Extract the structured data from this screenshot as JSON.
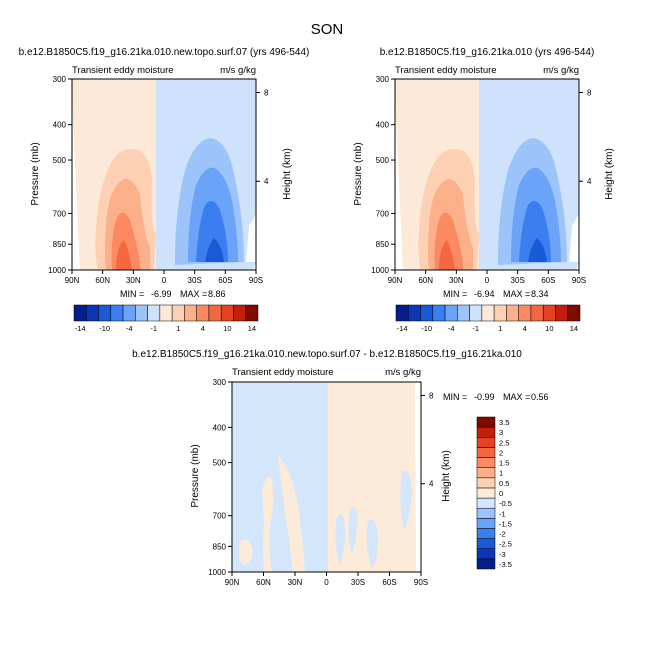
{
  "figure": {
    "title": "SON"
  },
  "palettes": {
    "main": [
      "#061d8c",
      "#0b36b8",
      "#1b5ad6",
      "#3a7ef0",
      "#6aa3f7",
      "#9cc3fa",
      "#cfe2fc",
      "#fce9d7",
      "#fdd0b3",
      "#fcb08a",
      "#fb8a62",
      "#f46740",
      "#e34322",
      "#c0200d",
      "#7f0b00"
    ],
    "diff": [
      "#061d8c",
      "#0b36b8",
      "#1b5ad6",
      "#3a7ef0",
      "#6aa3f7",
      "#9cc3fa",
      "#d3e6fc",
      "#fcebd8",
      "#fdd0b3",
      "#fcb08a",
      "#fb8a62",
      "#f46740",
      "#e34322",
      "#c0200d",
      "#7f0b00"
    ]
  },
  "chart_data": [
    {
      "type": "heatmap",
      "panel": "left",
      "title": "b.e12.B1850C5.f19_g16.21ka.010.new.topo.surf.07 (yrs 496-544)",
      "left_label": "Transient eddy moisture",
      "right_label": "m/s g/kg",
      "ylabel": "Pressure (mb)",
      "ylabel_right": "Height (km)",
      "x_ticks": [
        "90N",
        "60N",
        "30N",
        "0",
        "30S",
        "60S",
        "90S"
      ],
      "x_values": [
        90,
        60,
        30,
        0,
        -30,
        -60,
        -90
      ],
      "y_ticks": [
        "300",
        "400",
        "500",
        "700",
        "850",
        "1000"
      ],
      "y_values": [
        300,
        400,
        500,
        700,
        850,
        1000
      ],
      "height_ticks": [
        "8",
        "4"
      ],
      "height_values": [
        8,
        4
      ],
      "min_label": "MIN =",
      "min_value": "-6.99",
      "max_label": "MAX =",
      "max_value": "8.86",
      "colorbar_levels": [
        -14,
        -12,
        -10,
        -8,
        -4,
        -2,
        -1,
        0,
        1,
        2,
        4,
        8,
        10,
        12,
        14
      ],
      "colorbar_tick_labels": [
        "-14",
        "-10",
        "-4",
        "-1",
        "1",
        "4",
        "10",
        "14"
      ],
      "approx_extrema": {
        "positive_max": {
          "lat": 27,
          "pressure": 925,
          "value": 8.86
        },
        "negative_min": {
          "lat": -45,
          "pressure": 925,
          "value": -6.99
        }
      }
    },
    {
      "type": "heatmap",
      "panel": "right",
      "title": "b.e12.B1850C5.f19_g16.21ka.010 (yrs 496-544)",
      "left_label": "Transient eddy moisture",
      "right_label": "m/s g/kg",
      "ylabel": "Pressure (mb)",
      "ylabel_right": "Height (km)",
      "x_ticks": [
        "90N",
        "60N",
        "30N",
        "0",
        "30S",
        "60S",
        "90S"
      ],
      "x_values": [
        90,
        60,
        30,
        0,
        -30,
        -60,
        -90
      ],
      "y_ticks": [
        "300",
        "400",
        "500",
        "700",
        "850",
        "1000"
      ],
      "y_values": [
        300,
        400,
        500,
        700,
        850,
        1000
      ],
      "height_ticks": [
        "8",
        "4"
      ],
      "height_values": [
        8,
        4
      ],
      "min_label": "MIN =",
      "min_value": "-6.94",
      "max_label": "MAX =",
      "max_value": "8.34",
      "colorbar_levels": [
        -14,
        -12,
        -10,
        -8,
        -4,
        -2,
        -1,
        0,
        1,
        2,
        4,
        8,
        10,
        12,
        14
      ],
      "colorbar_tick_labels": [
        "-14",
        "-10",
        "-4",
        "-1",
        "1",
        "4",
        "10",
        "14"
      ],
      "approx_extrema": {
        "positive_max": {
          "lat": 27,
          "pressure": 925,
          "value": 8.34
        },
        "negative_min": {
          "lat": -45,
          "pressure": 925,
          "value": -6.94
        }
      }
    },
    {
      "type": "heatmap",
      "panel": "difference",
      "title": "b.e12.B1850C5.f19_g16.21ka.010.new.topo.surf.07 - b.e12.B1850C5.f19_g16.21ka.010",
      "left_label": "Transient eddy moisture",
      "right_label": "m/s g/kg",
      "ylabel": "Pressure (mb)",
      "ylabel_right": "Height (km)",
      "x_ticks": [
        "90N",
        "60N",
        "30N",
        "0",
        "30S",
        "60S",
        "90S"
      ],
      "x_values": [
        90,
        60,
        30,
        0,
        -30,
        -60,
        -90
      ],
      "y_ticks": [
        "300",
        "400",
        "500",
        "700",
        "850",
        "1000"
      ],
      "y_values": [
        300,
        400,
        500,
        700,
        850,
        1000
      ],
      "height_ticks": [
        "8",
        "4"
      ],
      "height_values": [
        8,
        4
      ],
      "min_label": "MIN =",
      "min_value": "-0.99",
      "max_label": "MAX =",
      "max_value": "0.56",
      "colorbar_levels": [
        -3.5,
        -3,
        -2.5,
        -2,
        -1.5,
        -1,
        -0.5,
        0,
        0.5,
        1,
        1.5,
        2,
        2.5,
        3,
        3.5
      ],
      "colorbar_tick_labels": [
        "-3.5",
        "-3",
        "-2.5",
        "-2",
        "-1.5",
        "-1",
        "-0.5",
        "0",
        "0.5",
        "1",
        "1.5",
        "2",
        "2.5",
        "3",
        "3.5"
      ]
    }
  ]
}
